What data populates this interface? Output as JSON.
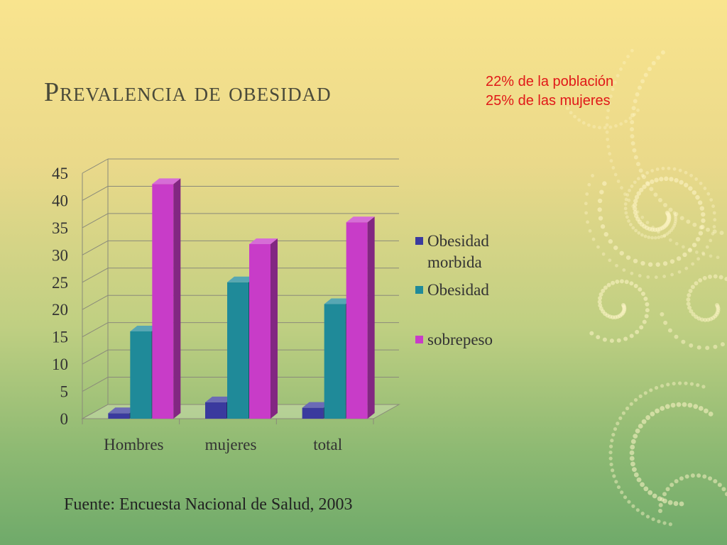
{
  "slide": {
    "title": "Prevalencia de obesidad",
    "notes": [
      "22% de la población",
      "25% de las mujeres"
    ],
    "source": "Fuente: Encuesta Nacional de Salud, 2003"
  },
  "colors": {
    "title": "#4a4a3a",
    "note": "#e01818",
    "grid": "#8a8a7a",
    "dots": "#fff6c8"
  },
  "chart_data": {
    "type": "bar",
    "style": "3d-clustered-column",
    "categories": [
      "Hombres",
      "mujeres",
      "total"
    ],
    "series": [
      {
        "name": "Obesidad morbida",
        "values": [
          1,
          3,
          2
        ],
        "color": "#3a3a9e"
      },
      {
        "name": "Obesidad",
        "values": [
          16,
          25,
          21
        ],
        "color": "#1f8a99"
      },
      {
        "name": "sobrepeso",
        "values": [
          43,
          32,
          36
        ],
        "color": "#c83cc8"
      }
    ],
    "ylim": [
      0,
      45
    ],
    "yticks": [
      0,
      5,
      10,
      15,
      20,
      25,
      30,
      35,
      40,
      45
    ],
    "grid": true,
    "legend_position": "right",
    "title": "",
    "xlabel": "",
    "ylabel": ""
  }
}
